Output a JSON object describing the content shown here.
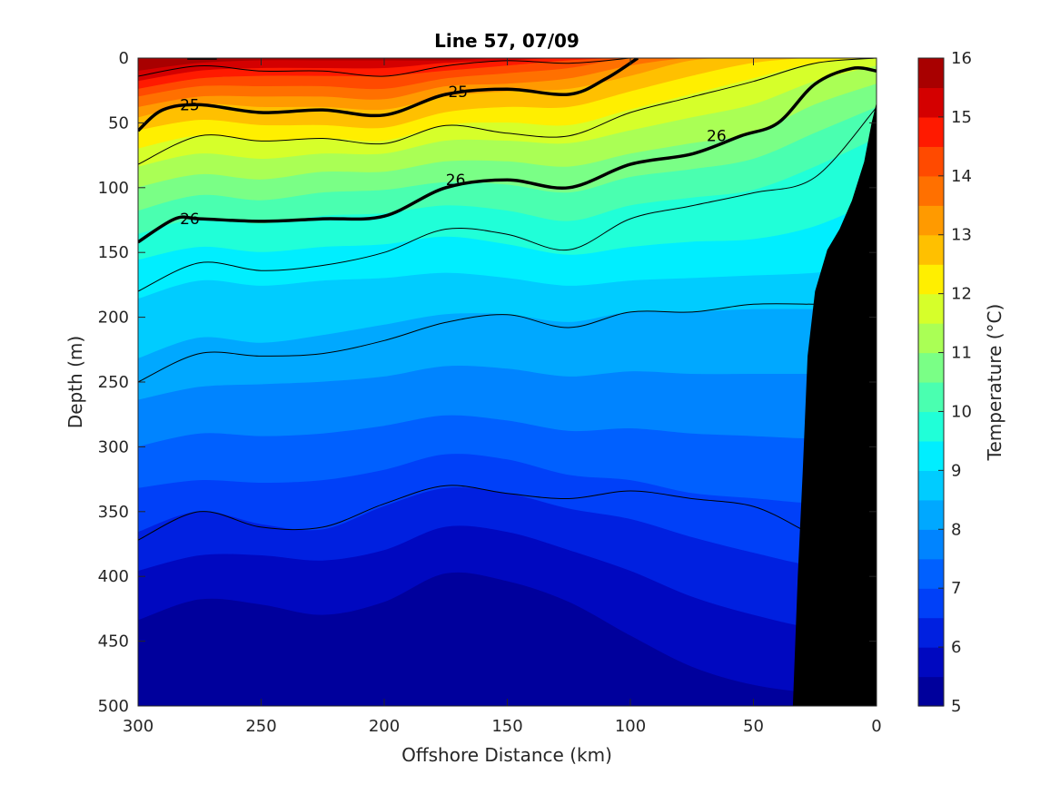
{
  "chart_data": {
    "type": "contour",
    "title": "Line 57, 07/09",
    "xlabel": "Offshore Distance (km)",
    "ylabel": "Depth (m)",
    "colorbar_label": "Temperature (°C)",
    "xlim": [
      300,
      0
    ],
    "ylim": [
      500,
      0
    ],
    "x_reversed": true,
    "y_reversed": true,
    "x_ticks": [
      "300",
      "250",
      "200",
      "150",
      "100",
      "50",
      "0"
    ],
    "y_ticks": [
      "0",
      "50",
      "100",
      "150",
      "200",
      "250",
      "300",
      "350",
      "400",
      "450",
      "500"
    ],
    "colorbar_ticks": [
      "5",
      "6",
      "7",
      "8",
      "9",
      "10",
      "11",
      "12",
      "13",
      "14",
      "15",
      "16"
    ],
    "colorbar_range": [
      5,
      16
    ],
    "colormap": "jet",
    "temperature_levels": [
      {
        "t": 15.5,
        "color": "#a80000"
      },
      {
        "t": 15.0,
        "color": "#d40000"
      },
      {
        "t": 14.5,
        "color": "#ff1a00"
      },
      {
        "t": 14.0,
        "color": "#ff4a00"
      },
      {
        "t": 13.5,
        "color": "#ff7000"
      },
      {
        "t": 13.0,
        "color": "#ff9a00"
      },
      {
        "t": 12.5,
        "color": "#ffc000"
      },
      {
        "t": 12.0,
        "color": "#ffef00"
      },
      {
        "t": 11.5,
        "color": "#d6ff2a"
      },
      {
        "t": 11.0,
        "color": "#aaff55"
      },
      {
        "t": 10.5,
        "color": "#7aff86"
      },
      {
        "t": 10.0,
        "color": "#4affb0"
      },
      {
        "t": 9.5,
        "color": "#20ffd8"
      },
      {
        "t": 9.0,
        "color": "#00eeff"
      },
      {
        "t": 8.5,
        "color": "#00ccff"
      },
      {
        "t": 8.0,
        "color": "#00a8ff"
      },
      {
        "t": 7.5,
        "color": "#0084ff"
      },
      {
        "t": 7.0,
        "color": "#0060ff"
      },
      {
        "t": 6.5,
        "color": "#0040f8"
      },
      {
        "t": 6.0,
        "color": "#0020e0"
      },
      {
        "t": 5.5,
        "color": "#0008c0"
      },
      {
        "t": 5.0,
        "color": "#00009c"
      }
    ],
    "isotherm_depth_profiles": {
      "x_km": [
        300,
        275,
        250,
        225,
        200,
        175,
        150,
        125,
        100,
        75,
        50,
        25,
        0
      ],
      "depths_m": [
        [
          0,
          0,
          0,
          0,
          0,
          0,
          0,
          0,
          0,
          0,
          0,
          0,
          0
        ],
        [
          10,
          4,
          2,
          2,
          2,
          2,
          0,
          0,
          0,
          0,
          0,
          0,
          0
        ],
        [
          18,
          10,
          8,
          8,
          8,
          4,
          2,
          0,
          0,
          0,
          0,
          0,
          0
        ],
        [
          24,
          16,
          14,
          14,
          14,
          10,
          6,
          2,
          0,
          0,
          0,
          0,
          0
        ],
        [
          30,
          22,
          22,
          22,
          24,
          16,
          12,
          8,
          0,
          0,
          0,
          0,
          0
        ],
        [
          38,
          30,
          30,
          30,
          32,
          22,
          20,
          16,
          6,
          0,
          0,
          0,
          0
        ],
        [
          46,
          36,
          38,
          38,
          40,
          30,
          26,
          24,
          14,
          2,
          0,
          0,
          0
        ],
        [
          56,
          48,
          52,
          52,
          54,
          42,
          38,
          38,
          26,
          14,
          4,
          0,
          0
        ],
        [
          70,
          60,
          64,
          62,
          64,
          52,
          50,
          52,
          40,
          28,
          16,
          4,
          0
        ],
        [
          84,
          74,
          78,
          74,
          74,
          64,
          64,
          66,
          56,
          46,
          36,
          18,
          6
        ],
        [
          100,
          90,
          94,
          88,
          88,
          80,
          80,
          84,
          74,
          66,
          58,
          36,
          20
        ],
        [
          118,
          106,
          110,
          104,
          102,
          96,
          98,
          104,
          92,
          86,
          78,
          58,
          38
        ],
        [
          136,
          124,
          128,
          122,
          120,
          114,
          118,
          126,
          114,
          108,
          102,
          84,
          62
        ],
        [
          156,
          146,
          150,
          146,
          144,
          138,
          144,
          152,
          146,
          142,
          140,
          130,
          110
        ],
        [
          186,
          172,
          176,
          172,
          170,
          166,
          170,
          176,
          172,
          170,
          168,
          166,
          160
        ],
        [
          232,
          216,
          220,
          214,
          206,
          198,
          198,
          204,
          196,
          196,
          194,
          194,
          194
        ],
        [
          264,
          254,
          252,
          250,
          246,
          238,
          240,
          246,
          242,
          244,
          244,
          244,
          244
        ],
        [
          300,
          290,
          292,
          290,
          284,
          276,
          280,
          288,
          286,
          290,
          292,
          294,
          294
        ],
        [
          332,
          326,
          328,
          326,
          318,
          306,
          310,
          322,
          326,
          336,
          340,
          344,
          344
        ],
        [
          366,
          350,
          360,
          364,
          346,
          332,
          336,
          348,
          356,
          370,
          382,
          392,
          392
        ],
        [
          396,
          384,
          384,
          388,
          380,
          362,
          366,
          380,
          396,
          416,
          430,
          440,
          440
        ],
        [
          434,
          418,
          422,
          430,
          420,
          398,
          404,
          420,
          446,
          470,
          484,
          490,
          490
        ],
        [
          520,
          520,
          520,
          520,
          520,
          520,
          520,
          520,
          520,
          520,
          520,
          520,
          520
        ]
      ]
    },
    "density_contours": {
      "thin_lines_depths_m": [
        {
          "x_km": [
            300,
            275,
            250,
            225,
            200,
            175,
            150,
            125,
            100,
            75,
            50,
            25
          ],
          "y_m": [
            250,
            228,
            230,
            228,
            218,
            204,
            198,
            208,
            196,
            196,
            190,
            190
          ]
        },
        {
          "x_km": [
            300,
            275,
            250,
            225,
            200,
            175,
            150,
            125,
            100,
            75,
            50,
            30
          ],
          "y_m": [
            372,
            350,
            362,
            362,
            344,
            330,
            336,
            340,
            334,
            340,
            346,
            364
          ]
        },
        {
          "x_km": [
            300,
            275,
            250,
            225,
            200,
            175,
            150,
            125,
            100,
            75,
            50,
            25,
            0
          ],
          "y_m": [
            180,
            158,
            164,
            160,
            150,
            132,
            136,
            148,
            124,
            114,
            104,
            92,
            38
          ]
        },
        {
          "x_km": [
            300,
            275,
            250,
            225,
            200,
            175,
            150,
            125,
            100,
            75,
            50,
            25,
            0
          ],
          "y_m": [
            82,
            60,
            64,
            62,
            66,
            52,
            58,
            60,
            42,
            30,
            18,
            4,
            0
          ]
        },
        {
          "x_km": [
            300,
            275,
            250,
            225,
            200,
            175,
            150,
            125,
            100
          ],
          "y_m": [
            14,
            6,
            10,
            10,
            14,
            6,
            2,
            4,
            0
          ]
        }
      ],
      "labeled": [
        {
          "label": "25",
          "x_km": [
            300,
            290,
            275,
            250,
            225,
            200,
            175,
            150,
            125,
            110,
            97
          ],
          "y_m": [
            56,
            40,
            36,
            42,
            40,
            44,
            28,
            24,
            28,
            16,
            0
          ]
        },
        {
          "label": "25",
          "x_km": [
            280,
            268
          ],
          "y_m": [
            0,
            0
          ]
        },
        {
          "label": "26",
          "x_km": [
            300,
            285,
            275,
            250,
            225,
            200,
            175,
            150,
            125,
            100,
            75,
            55,
            40,
            25,
            10,
            0
          ],
          "y_m": [
            142,
            124,
            124,
            126,
            124,
            122,
            100,
            94,
            100,
            82,
            74,
            60,
            50,
            20,
            8,
            10
          ]
        }
      ],
      "label_positions": [
        {
          "text": "25",
          "x_km": 279,
          "y_m": 36
        },
        {
          "text": "25",
          "x_km": 170,
          "y_m": 26
        },
        {
          "text": "26",
          "x_km": 279,
          "y_m": 124
        },
        {
          "text": "26",
          "x_km": 171,
          "y_m": 94
        },
        {
          "text": "26",
          "x_km": 65,
          "y_m": 60
        }
      ]
    },
    "bathymetry": {
      "x_km": [
        0,
        0,
        2,
        5,
        10,
        15,
        20,
        25,
        28,
        30,
        32,
        34
      ],
      "y_m": [
        0,
        34,
        50,
        80,
        110,
        132,
        148,
        180,
        230,
        320,
        400,
        500
      ],
      "color": "#000000"
    }
  }
}
